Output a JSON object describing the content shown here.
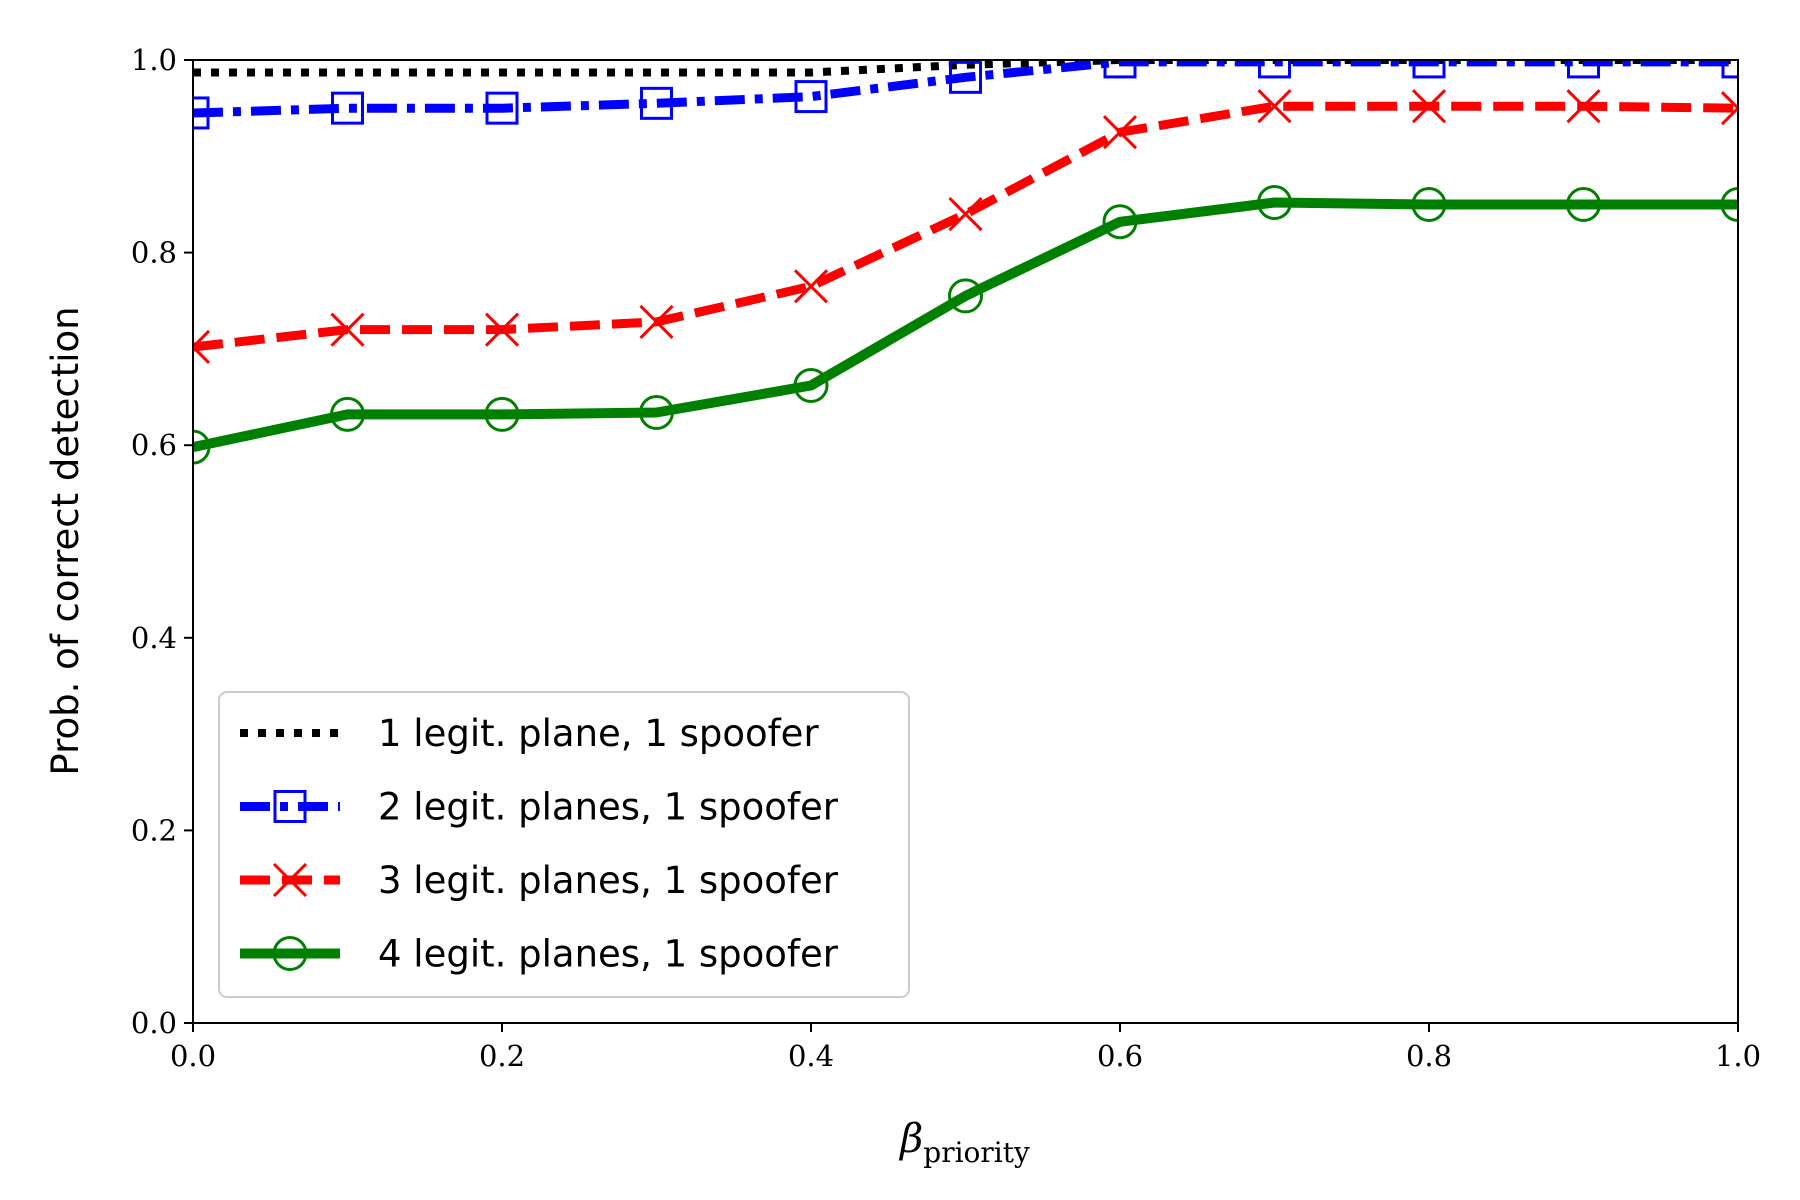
{
  "chart_data": {
    "type": "line",
    "xlabel_main": "β",
    "xlabel_sub": "priority",
    "ylabel": "Prob. of correct detection",
    "xlim": [
      0.0,
      1.0
    ],
    "ylim": [
      0.0,
      1.0
    ],
    "x_ticks": [
      "0.0",
      "0.2",
      "0.4",
      "0.6",
      "0.8",
      "1.0"
    ],
    "y_ticks": [
      "0.0",
      "0.2",
      "0.4",
      "0.6",
      "0.8",
      "1.0"
    ],
    "grid": false,
    "legend_position": "lower-left",
    "x": [
      0.0,
      0.1,
      0.2,
      0.3,
      0.4,
      0.5,
      0.6,
      0.7,
      0.8,
      0.9,
      1.0
    ],
    "series": [
      {
        "name": "1 legit. plane, 1 spoofer",
        "color": "#000000",
        "line_style": "dotted",
        "marker": "none",
        "values": [
          0.987,
          0.987,
          0.987,
          0.987,
          0.987,
          0.995,
          1.0,
          1.0,
          1.0,
          1.0,
          1.0
        ]
      },
      {
        "name": "2 legit. planes, 1 spoofer",
        "color": "#0000ff",
        "line_style": "dashdot",
        "marker": "square",
        "values": [
          0.945,
          0.95,
          0.95,
          0.955,
          0.962,
          0.982,
          0.998,
          0.998,
          0.998,
          0.998,
          0.998
        ]
      },
      {
        "name": "3 legit. planes, 1 spoofer",
        "color": "#ff0000",
        "line_style": "dashed",
        "marker": "x",
        "values": [
          0.702,
          0.72,
          0.72,
          0.728,
          0.765,
          0.84,
          0.925,
          0.952,
          0.952,
          0.952,
          0.95
        ]
      },
      {
        "name": "4 legit. planes, 1 spoofer",
        "color": "#008000",
        "line_style": "solid",
        "marker": "circle",
        "values": [
          0.598,
          0.632,
          0.632,
          0.634,
          0.662,
          0.755,
          0.832,
          0.852,
          0.85,
          0.85,
          0.85
        ]
      }
    ]
  }
}
